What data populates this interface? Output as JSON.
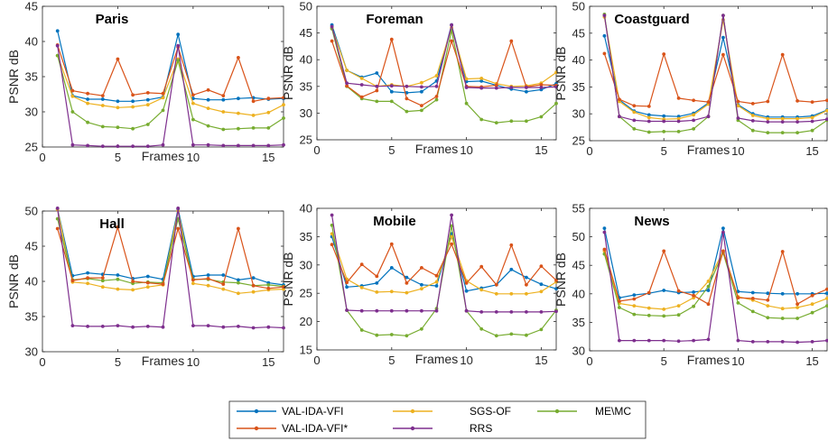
{
  "chart_data": {
    "type": "line",
    "x": [
      1,
      2,
      3,
      4,
      5,
      6,
      7,
      8,
      9,
      10,
      11,
      12,
      13,
      14,
      15,
      16
    ],
    "xlabel": "Frames",
    "ylabel": "PSNR dB",
    "xlim": [
      0,
      16
    ],
    "xticks": [
      "0",
      "5",
      "10",
      "15"
    ],
    "series_names": [
      "VAL-IDA-VFI",
      "SGS-OF",
      "ME\\MC",
      "VAL-IDA-VFI*",
      "RRS"
    ],
    "colors": {
      "VAL-IDA-VFI": "#0072BD",
      "SGS-OF": "#EDB120",
      "ME\\MC": "#77AC30",
      "VAL-IDA-VFI*": "#D95319",
      "RRS": "#7E2F8E"
    },
    "panels": [
      {
        "title": "Paris",
        "ylim": [
          25,
          45
        ],
        "yticks": [
          "25",
          "30",
          "35",
          "40",
          "45"
        ],
        "series": [
          {
            "name": "VAL-IDA-VFI",
            "values": [
              41.5,
              32.3,
              31.8,
              31.8,
              31.5,
              31.5,
              31.7,
              32.1,
              41.0,
              31.9,
              31.7,
              31.7,
              31.9,
              32.0,
              31.8,
              31.9
            ]
          },
          {
            "name": "SGS-OF",
            "values": [
              38.0,
              32.2,
              31.2,
              30.9,
              30.6,
              30.7,
              31.0,
              32.0,
              37.5,
              31.2,
              30.5,
              30.0,
              29.8,
              29.5,
              29.9,
              31.0
            ]
          },
          {
            "name": "ME\\MC",
            "values": [
              38.0,
              30.0,
              28.5,
              27.9,
              27.8,
              27.6,
              28.2,
              30.2,
              37.3,
              28.9,
              28.0,
              27.5,
              27.6,
              27.7,
              27.7,
              29.1
            ]
          },
          {
            "name": "VAL-IDA-VFI*",
            "values": [
              39.5,
              33.0,
              32.6,
              32.3,
              37.5,
              32.4,
              32.7,
              32.6,
              39.2,
              32.4,
              33.1,
              32.3,
              37.7,
              31.5,
              31.9,
              32.0
            ]
          },
          {
            "name": "RRS",
            "values": [
              39.4,
              25.3,
              25.2,
              25.1,
              25.1,
              25.1,
              25.1,
              25.3,
              39.4,
              25.3,
              25.3,
              25.2,
              25.2,
              25.2,
              25.2,
              25.3
            ]
          }
        ]
      },
      {
        "title": "Foreman",
        "ylim": [
          25,
          50
        ],
        "yticks": [
          "25",
          "30",
          "35",
          "40",
          "45",
          "50"
        ],
        "series": [
          {
            "name": "VAL-IDA-VFI",
            "values": [
              46.5,
              38.0,
              36.7,
              37.5,
              34.0,
              33.8,
              34.0,
              36.0,
              46.5,
              35.9,
              36.0,
              35.2,
              34.5,
              34.0,
              34.4,
              35.5
            ]
          },
          {
            "name": "SGS-OF",
            "values": [
              46.0,
              38.0,
              36.5,
              35.0,
              35.3,
              35.0,
              35.7,
              37.0,
              46.0,
              36.4,
              36.5,
              35.5,
              35.0,
              35.1,
              35.6,
              37.6
            ]
          },
          {
            "name": "ME\\MC",
            "values": [
              45.8,
              35.0,
              32.7,
              32.2,
              32.2,
              30.3,
              30.5,
              32.5,
              45.5,
              31.8,
              28.8,
              28.2,
              28.5,
              28.5,
              29.3,
              31.8
            ]
          },
          {
            "name": "VAL-IDA-VFI*",
            "values": [
              43.5,
              35.1,
              33.0,
              34.2,
              43.8,
              32.7,
              31.4,
              33.1,
              43.5,
              35.0,
              34.9,
              35.2,
              43.5,
              34.9,
              35.3,
              35.2
            ]
          },
          {
            "name": "RRS",
            "values": [
              46.2,
              35.6,
              35.3,
              35.0,
              35.1,
              35.0,
              34.9,
              35.0,
              46.5,
              34.8,
              34.7,
              34.7,
              34.8,
              34.8,
              34.8,
              34.9
            ]
          }
        ]
      },
      {
        "title": "Coastguard",
        "ylim": [
          25,
          50
        ],
        "yticks": [
          "25",
          "30",
          "35",
          "40",
          "45",
          "50"
        ],
        "series": [
          {
            "name": "VAL-IDA-VFI",
            "values": [
              44.5,
              32.6,
              30.5,
              29.8,
              29.6,
              29.5,
              30.1,
              32.0,
              44.2,
              31.7,
              30.0,
              29.4,
              29.4,
              29.4,
              29.6,
              30.7
            ]
          },
          {
            "name": "SGS-OF",
            "values": [
              48.0,
              32.3,
              30.3,
              29.3,
              29.0,
              29.1,
              29.8,
              31.8,
              47.5,
              31.5,
              29.7,
              29.1,
              29.1,
              29.1,
              29.3,
              30.6
            ]
          },
          {
            "name": "ME\\MC",
            "values": [
              48.5,
              29.5,
              27.2,
              26.6,
              26.7,
              26.7,
              27.2,
              29.5,
              48.3,
              28.8,
              26.9,
              26.5,
              26.5,
              26.5,
              26.9,
              28.8
            ]
          },
          {
            "name": "VAL-IDA-VFI*",
            "values": [
              41.2,
              32.7,
              31.5,
              31.4,
              41.1,
              32.9,
              32.5,
              32.2,
              41.0,
              32.3,
              31.9,
              32.3,
              41.0,
              32.4,
              32.2,
              32.5
            ]
          },
          {
            "name": "RRS",
            "values": [
              48.3,
              29.5,
              28.8,
              28.6,
              28.6,
              28.6,
              28.8,
              29.5,
              48.3,
              29.2,
              28.7,
              28.5,
              28.5,
              28.5,
              28.6,
              29.0
            ]
          }
        ]
      },
      {
        "title": "Hall",
        "ylim": [
          30,
          50
        ],
        "yticks": [
          "30",
          "35",
          "40",
          "45",
          "50"
        ],
        "series": [
          {
            "name": "VAL-IDA-VFI",
            "values": [
              50.3,
              40.8,
              41.2,
              41.0,
              40.9,
              40.4,
              40.7,
              40.3,
              50.3,
              40.7,
              40.9,
              40.9,
              40.2,
              40.5,
              39.8,
              39.5
            ]
          },
          {
            "name": "SGS-OF",
            "values": [
              50.2,
              39.9,
              39.7,
              39.2,
              38.9,
              38.8,
              39.2,
              39.5,
              50.0,
              39.7,
              39.4,
              38.9,
              38.3,
              38.5,
              38.8,
              38.9
            ]
          },
          {
            "name": "ME\\MC",
            "values": [
              48.9,
              40.2,
              40.4,
              40.1,
              40.3,
              39.7,
              39.9,
              39.8,
              48.9,
              40.3,
              40.3,
              39.9,
              39.8,
              39.4,
              39.5,
              39.3
            ]
          },
          {
            "name": "VAL-IDA-VFI*",
            "values": [
              47.5,
              40.1,
              40.5,
              40.5,
              47.7,
              40.0,
              39.8,
              39.6,
              47.5,
              40.2,
              40.4,
              39.6,
              47.5,
              39.4,
              39.0,
              39.2
            ]
          },
          {
            "name": "RRS",
            "values": [
              50.4,
              33.7,
              33.6,
              33.6,
              33.7,
              33.5,
              33.6,
              33.5,
              50.4,
              33.7,
              33.7,
              33.5,
              33.6,
              33.4,
              33.5,
              33.4
            ]
          }
        ]
      },
      {
        "title": "Mobile",
        "ylim": [
          15,
          40
        ],
        "yticks": [
          "15",
          "20",
          "25",
          "30",
          "35",
          "40"
        ],
        "series": [
          {
            "name": "VAL-IDA-VFI",
            "values": [
              35.0,
              26.1,
              26.3,
              26.8,
              29.5,
              27.8,
              26.5,
              26.3,
              35.5,
              25.4,
              25.9,
              26.5,
              29.2,
              27.8,
              26.6,
              25.8
            ]
          },
          {
            "name": "SGS-OF",
            "values": [
              35.5,
              27.5,
              26.0,
              25.2,
              25.3,
              25.1,
              25.8,
              27.0,
              35.0,
              27.2,
              25.6,
              24.9,
              24.9,
              24.9,
              25.3,
              27.0
            ]
          },
          {
            "name": "ME\\MC",
            "values": [
              37.0,
              22.0,
              18.5,
              17.6,
              17.7,
              17.5,
              18.7,
              22.3,
              36.9,
              21.9,
              18.7,
              17.5,
              17.8,
              17.6,
              18.6,
              22.0
            ]
          },
          {
            "name": "VAL-IDA-VFI*",
            "values": [
              33.6,
              26.9,
              30.1,
              28.0,
              33.7,
              26.8,
              29.5,
              28.1,
              33.7,
              26.8,
              29.7,
              26.5,
              33.5,
              26.5,
              29.8,
              27.3
            ]
          },
          {
            "name": "RRS",
            "values": [
              38.8,
              22.0,
              21.9,
              21.9,
              21.9,
              21.9,
              21.9,
              21.9,
              38.8,
              21.9,
              21.7,
              21.7,
              21.7,
              21.7,
              21.7,
              21.8
            ]
          }
        ]
      },
      {
        "title": "News",
        "ylim": [
          30,
          55
        ],
        "yticks": [
          "30",
          "35",
          "40",
          "45",
          "50",
          "55"
        ],
        "series": [
          {
            "name": "VAL-IDA-VFI",
            "values": [
              51.5,
              39.3,
              39.8,
              40.1,
              40.6,
              40.2,
              40.3,
              40.6,
              51.5,
              40.4,
              40.2,
              40.1,
              40.0,
              40.0,
              40.0,
              40.1
            ]
          },
          {
            "name": "SGS-OF",
            "values": [
              47.5,
              38.3,
              37.9,
              37.5,
              37.3,
              37.9,
              39.3,
              42.2,
              47.5,
              39.5,
              38.9,
              37.9,
              37.4,
              37.6,
              38.2,
              39.2
            ]
          },
          {
            "name": "ME\\MC",
            "values": [
              47.0,
              37.6,
              36.4,
              36.2,
              36.1,
              36.3,
              37.8,
              41.3,
              47.2,
              38.4,
              36.9,
              35.8,
              35.7,
              35.7,
              36.7,
              37.9
            ]
          },
          {
            "name": "VAL-IDA-VFI*",
            "values": [
              47.8,
              38.7,
              39.1,
              40.2,
              47.5,
              40.5,
              39.7,
              38.2,
              47.5,
              39.3,
              39.2,
              38.9,
              47.4,
              38.2,
              39.7,
              40.8
            ]
          },
          {
            "name": "RRS",
            "values": [
              50.8,
              31.8,
              31.8,
              31.8,
              31.8,
              31.7,
              31.8,
              32.0,
              50.8,
              31.8,
              31.6,
              31.6,
              31.6,
              31.5,
              31.6,
              31.8
            ]
          }
        ]
      }
    ],
    "legend": {
      "position": "bottom-center",
      "items": [
        "VAL-IDA-VFI",
        "SGS-OF",
        "ME\\MC",
        "VAL-IDA-VFI*",
        "RRS"
      ]
    }
  }
}
